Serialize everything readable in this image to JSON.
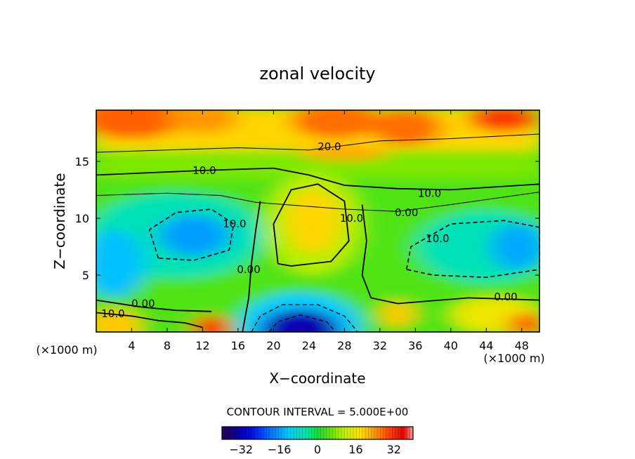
{
  "chart_data": {
    "type": "heatmap",
    "title": "zonal velocity",
    "xlabel": "X−coordinate",
    "ylabel": "Z−coordinate",
    "x_units_left": "(×1000 m)",
    "x_units_right": "(×1000 m)",
    "x_range": [
      0,
      50
    ],
    "y_range": [
      0,
      19.5
    ],
    "x_ticks": [
      4,
      8,
      12,
      16,
      20,
      24,
      28,
      32,
      36,
      40,
      44,
      48
    ],
    "x_tick_labels": [
      "4",
      "8",
      "12",
      "16",
      "20",
      "24",
      "28",
      "32",
      "36",
      "40",
      "44",
      "48"
    ],
    "y_ticks": [
      5,
      10,
      15
    ],
    "y_tick_labels": [
      "5",
      "10",
      "15"
    ],
    "contour_interval_text": "CONTOUR INTERVAL = 5.000E+00",
    "contour_interval": 5,
    "negative_contours": "dashed",
    "colorbar": {
      "range": [
        -40,
        40
      ],
      "ticks": [
        -32,
        -16,
        0,
        16,
        32
      ],
      "tick_labels": [
        "−32",
        "−16",
        "0",
        "16",
        "32"
      ]
    },
    "contour_labels": [
      {
        "text": "20.0",
        "x": 26.3,
        "z": 16.3
      },
      {
        "text": "10.0",
        "x": 12.2,
        "z": 14.2
      },
      {
        "text": "10.0",
        "x": 37.6,
        "z": 12.2
      },
      {
        "text": "0.00",
        "x": 35.0,
        "z": 10.5
      },
      {
        "text": "10.0",
        "x": 15.6,
        "z": 9.5
      },
      {
        "text": "10.0",
        "x": 28.8,
        "z": 10.0
      },
      {
        "text": "0.00",
        "x": 17.2,
        "z": 5.5
      },
      {
        "text": "10.0",
        "x": 38.5,
        "z": 8.2
      },
      {
        "text": "0.00",
        "x": 46.2,
        "z": 3.1
      },
      {
        "text": "0.00",
        "x": 5.3,
        "z": 2.5
      },
      {
        "text": "10.0",
        "x": 1.9,
        "z": 1.6
      }
    ],
    "features": [
      {
        "type": "max",
        "x": 46,
        "z": 19,
        "value": 30
      },
      {
        "type": "max",
        "x": 35,
        "z": 18,
        "value": 25
      },
      {
        "type": "max",
        "x": 27,
        "z": 18.5,
        "value": 26
      },
      {
        "type": "max",
        "x": 24.5,
        "z": 9.8,
        "value": 18
      },
      {
        "type": "max",
        "x": 13,
        "z": 0.2,
        "value": 30
      },
      {
        "type": "max",
        "x": 48,
        "z": 0.8,
        "value": 28
      },
      {
        "type": "max",
        "x": 1,
        "z": 0.3,
        "value": 24
      },
      {
        "type": "max",
        "x": 34,
        "z": 1.5,
        "value": 20
      },
      {
        "type": "min",
        "x": 23,
        "z": 0,
        "value": -36
      },
      {
        "type": "min",
        "x": 11,
        "z": 8.5,
        "value": -16
      },
      {
        "type": "min",
        "x": 1.5,
        "z": 6,
        "value": -15
      },
      {
        "type": "min",
        "x": 47.5,
        "z": 7.5,
        "value": -15
      }
    ]
  }
}
